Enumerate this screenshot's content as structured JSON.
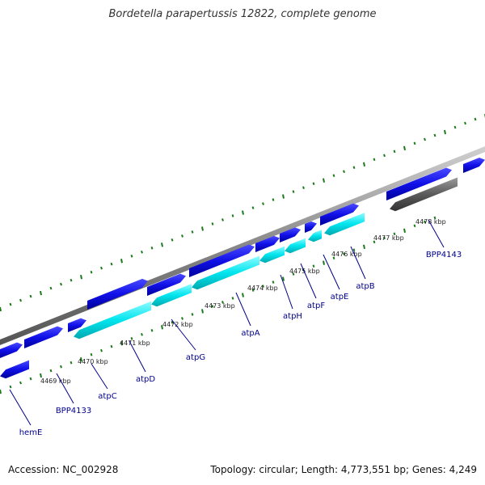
{
  "title": "Bordetella parapertussis 12822, complete genome",
  "footer": {
    "accession": "Accession: NC_002928",
    "summary": "Topology: circular; Length: 4,773,551 bp; Genes: 4,249"
  },
  "colors": {
    "forward_gene": "#1010e8",
    "reverse_cds": "#00e5ee",
    "pseudo_gene": "#555555",
    "backbone": "#8a8a8a",
    "gc_ticks": "#1a7a1a",
    "label": "#00008b"
  },
  "tick_labels": [
    "4469 kbp",
    "4470 kbp",
    "4471 kbp",
    "4472 kbp",
    "4473 kbp",
    "4474 kbp",
    "4475 kbp",
    "4476 kbp",
    "4477 kbp",
    "4478 kbp"
  ],
  "gene_labels": [
    "hemE",
    "BPP4133",
    "atpC",
    "atpD",
    "atpG",
    "atpA",
    "atpH",
    "atpF",
    "atpE",
    "atpB",
    "BPP4143"
  ]
}
